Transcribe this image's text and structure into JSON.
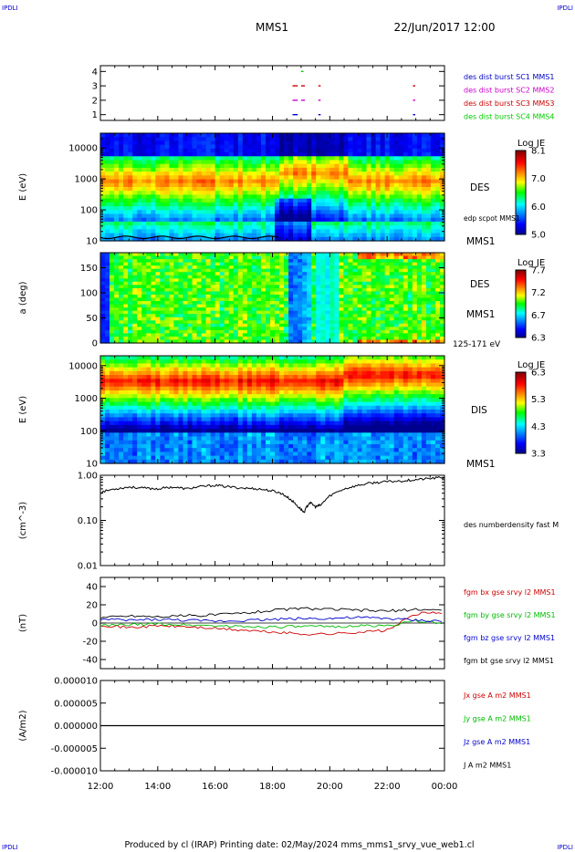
{
  "header": {
    "corner_left": "IPDLI",
    "corner_right": "IPDLI",
    "spacecraft": "MMS1",
    "datetime": "22/Jun/2017 12:00"
  },
  "footer": {
    "text": "Produced by cl (IRAP)   Printing date: 02/May/2024   mms_mms1_srvy_vue_web1.cl",
    "corner_left": "IPDLI",
    "corner_right": "IPDLI"
  },
  "colors": {
    "c1": "#0000cc",
    "c2": "#cc00cc",
    "c3": "#cc0000",
    "c4": "#00cc00",
    "bx": "#cc0000",
    "by": "#00bb00",
    "bz": "#0000cc",
    "bt": "#000000"
  },
  "chart_data": [
    {
      "id": "burst",
      "type": "scatter",
      "ylim": [
        0.6,
        4.4
      ],
      "yticks": [
        "1",
        "2",
        "3",
        "4"
      ],
      "legend": [
        {
          "label": "des dist burst SC1 MMS1",
          "color": "#0000cc"
        },
        {
          "label": "des dist burst SC2 MMS2",
          "color": "#cc00cc"
        },
        {
          "label": "des dist burst SC3 MMS3",
          "color": "#cc0000"
        },
        {
          "label": "des dist burst SC4 MMS4",
          "color": "#00cc00"
        }
      ],
      "series": [
        {
          "sc": 1,
          "segments": [
            [
              18.7,
              18.85
            ],
            [
              19.6,
              19.65
            ],
            [
              22.9,
              22.95
            ]
          ]
        },
        {
          "sc": 2,
          "segments": [
            [
              18.7,
              18.85
            ],
            [
              19.0,
              19.1
            ],
            [
              19.6,
              19.65
            ],
            [
              22.9,
              22.95
            ]
          ]
        },
        {
          "sc": 3,
          "segments": [
            [
              18.7,
              18.85
            ],
            [
              19.0,
              19.1
            ],
            [
              19.6,
              19.65
            ],
            [
              22.9,
              22.95
            ]
          ]
        },
        {
          "sc": 4,
          "segments": [
            [
              19.0,
              19.05
            ]
          ]
        }
      ]
    },
    {
      "id": "des_energy",
      "type": "heatmap",
      "ylabel": "E (eV)",
      "yscale": "log",
      "ylim": [
        10,
        30000
      ],
      "yticks": [
        "10",
        "100",
        "1000",
        "10000"
      ],
      "label_instrument": "DES",
      "label_sc": "MMS1",
      "overlay_label": "edp scpot MMS1",
      "colorbar": {
        "title": "Log JE",
        "min": 5.0,
        "max": 8.1,
        "ticks": [
          "8.1",
          "7.0",
          "6.0",
          "5.0"
        ]
      }
    },
    {
      "id": "des_pitch",
      "type": "heatmap",
      "ylabel": "a (deg)",
      "ylim": [
        0,
        180
      ],
      "yticks": [
        "0",
        "50",
        "100",
        "150"
      ],
      "label_instrument": "DES",
      "label_sc": "MMS1",
      "label_energy": "125-171 eV",
      "colorbar": {
        "title": "Log JE",
        "min": 6.3,
        "max": 7.7,
        "ticks": [
          "7.7",
          "7.2",
          "6.7",
          "6.3"
        ]
      }
    },
    {
      "id": "dis_energy",
      "type": "heatmap",
      "ylabel": "E (eV)",
      "yscale": "log",
      "ylim": [
        10,
        20000
      ],
      "yticks": [
        "10",
        "100",
        "1000",
        "10000"
      ],
      "label_instrument": "DIS",
      "label_sc": "MMS1",
      "colorbar": {
        "title": "Log JE",
        "min": 3.3,
        "max": 6.3,
        "ticks": [
          "6.3",
          "5.3",
          "4.3",
          "3.3"
        ]
      }
    },
    {
      "id": "density",
      "type": "line",
      "ylabel": "(cm^-3)",
      "yscale": "log",
      "ylim": [
        0.01,
        1.0
      ],
      "yticks": [
        "0.01",
        "0.10",
        "1.00"
      ],
      "legend": [
        {
          "label": "des numberdensity fast M",
          "color": "#000000"
        }
      ],
      "x": [
        12.0,
        12.5,
        13.0,
        13.5,
        14.0,
        14.5,
        15.0,
        15.5,
        16.0,
        16.5,
        17.0,
        17.5,
        18.0,
        18.3,
        18.6,
        18.9,
        19.1,
        19.3,
        19.5,
        19.7,
        20.0,
        20.5,
        21.0,
        21.5,
        22.0,
        22.5,
        23.0,
        23.5,
        24.0
      ],
      "y": [
        0.42,
        0.5,
        0.55,
        0.52,
        0.5,
        0.55,
        0.5,
        0.56,
        0.6,
        0.55,
        0.52,
        0.5,
        0.45,
        0.4,
        0.3,
        0.2,
        0.15,
        0.25,
        0.2,
        0.22,
        0.35,
        0.5,
        0.6,
        0.68,
        0.72,
        0.75,
        0.8,
        0.85,
        0.9
      ]
    },
    {
      "id": "bfield",
      "type": "line",
      "ylabel": "(nT)",
      "ylim": [
        -50,
        50
      ],
      "yticks": [
        "-40",
        "-20",
        "0",
        "20",
        "40"
      ],
      "x": [
        12.0,
        13.0,
        14.0,
        15.0,
        16.0,
        17.0,
        18.0,
        19.0,
        20.0,
        21.0,
        22.0,
        23.0,
        24.0
      ],
      "series": [
        {
          "name": "fgm bx gse srvy l2 MMS1",
          "color": "#cc0000",
          "values": [
            -2,
            -5,
            -3,
            -4,
            -6,
            -8,
            -10,
            -12,
            -12,
            -10,
            -8,
            10,
            12
          ]
        },
        {
          "name": "fgm by gse srvy l2 MMS1",
          "color": "#00bb00",
          "values": [
            -3,
            -2,
            -1,
            -2,
            -3,
            -4,
            -4,
            -4,
            -4,
            -3,
            -3,
            2,
            0
          ]
        },
        {
          "name": "fgm bz gse srvy l2 MMS1",
          "color": "#0000cc",
          "values": [
            4,
            3,
            4,
            3,
            2,
            3,
            4,
            5,
            5,
            6,
            5,
            3,
            2
          ]
        },
        {
          "name": "fgm bt gse srvy l2 MMS1",
          "color": "#000000",
          "values": [
            6,
            8,
            7,
            8,
            9,
            11,
            14,
            16,
            15,
            14,
            13,
            15,
            14
          ]
        }
      ]
    },
    {
      "id": "current",
      "type": "line",
      "ylabel": "(A/m2)",
      "ylim": [
        -1e-05,
        1e-05
      ],
      "yticks": [
        "-0.000010",
        "-0.000005",
        "0.000000",
        "0.000005",
        "0.000010"
      ],
      "legend": [
        {
          "label": "Jx gse A m2 MMS1",
          "color": "#cc0000"
        },
        {
          "label": "Jy gse A m2 MMS1",
          "color": "#00bb00"
        },
        {
          "label": "Jz gse A m2 MMS1",
          "color": "#0000cc"
        },
        {
          "label": "J A m2 MMS1",
          "color": "#000000"
        }
      ],
      "x": [
        12.0,
        24.0
      ],
      "y": [
        0.0,
        0.0
      ]
    }
  ],
  "time_axis": {
    "range": [
      12.0,
      24.0
    ],
    "ticks": [
      "12:00",
      "14:00",
      "16:00",
      "18:00",
      "20:00",
      "22:00",
      "00:00"
    ]
  }
}
